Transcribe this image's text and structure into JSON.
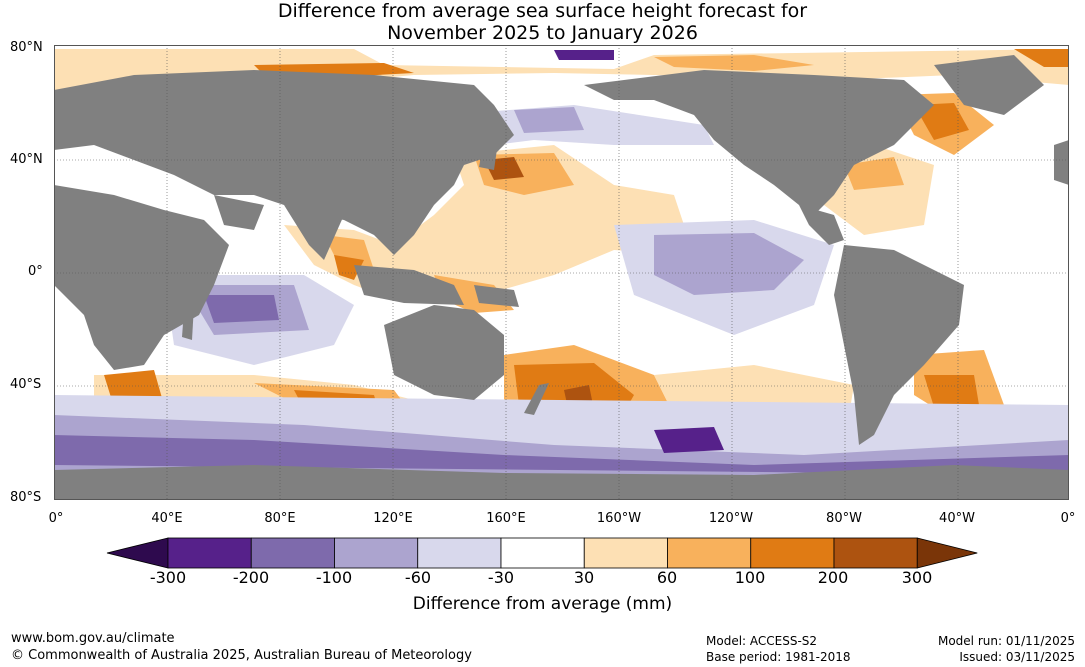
{
  "title_line1": "Difference from average sea surface height forecast for",
  "title_line2": "November 2025 to January 2026",
  "lat_labels": [
    "80°N",
    "40°N",
    "0°",
    "40°S",
    "80°S"
  ],
  "lon_labels": [
    "0°",
    "40°E",
    "80°E",
    "120°E",
    "160°E",
    "160°W",
    "120°W",
    "80°W",
    "40°W",
    "0°"
  ],
  "colorbar": {
    "ticks": [
      "-300",
      "-200",
      "-100",
      "-60",
      "-30",
      "30",
      "60",
      "100",
      "200",
      "300"
    ],
    "colors": [
      "#2e0a4e",
      "#56218a",
      "#7e6aac",
      "#aca4cf",
      "#d8d8ec",
      "#ffffff",
      "#fde0b4",
      "#f8b15c",
      "#e07b14",
      "#ad5310",
      "#7a3508"
    ],
    "label": "Difference from average (mm)"
  },
  "footer": {
    "website": "www.bom.gov.au/climate",
    "copyright": "© Commonwealth of Australia 2025, Australian Bureau of Meteorology",
    "model": "Model: ACCESS-S2",
    "base_period": "Base period: 1981-2018",
    "model_run": "Model run: 01/11/2025",
    "issued": "Issued: 03/11/2025"
  },
  "colors": {
    "land": "#808080",
    "grid": "#555555"
  }
}
